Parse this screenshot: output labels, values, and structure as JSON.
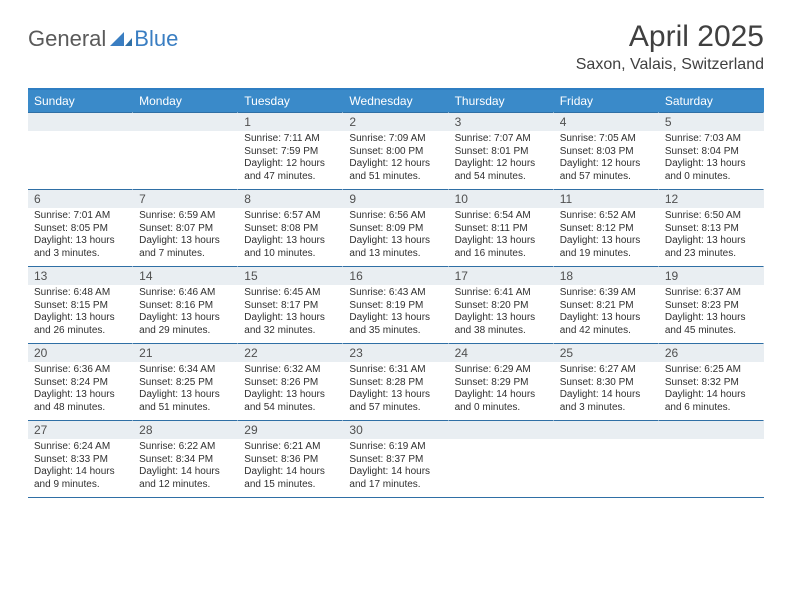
{
  "brand": {
    "general": "General",
    "blue": "Blue"
  },
  "title": "April 2025",
  "location": "Saxon, Valais, Switzerland",
  "colors": {
    "header_bar": "#3a8ac9",
    "header_top_border": "#2f7ec2",
    "daynum_bg": "#e9eef2",
    "row_border": "#2f6fa5",
    "text": "#303030",
    "logo_gray": "#5a5a5a",
    "logo_blue": "#3a7ec2"
  },
  "weekdays": [
    "Sunday",
    "Monday",
    "Tuesday",
    "Wednesday",
    "Thursday",
    "Friday",
    "Saturday"
  ],
  "leading_blanks": 2,
  "days": [
    {
      "n": 1,
      "sunrise": "7:11 AM",
      "sunset": "7:59 PM",
      "daylight": "12 hours and 47 minutes."
    },
    {
      "n": 2,
      "sunrise": "7:09 AM",
      "sunset": "8:00 PM",
      "daylight": "12 hours and 51 minutes."
    },
    {
      "n": 3,
      "sunrise": "7:07 AM",
      "sunset": "8:01 PM",
      "daylight": "12 hours and 54 minutes."
    },
    {
      "n": 4,
      "sunrise": "7:05 AM",
      "sunset": "8:03 PM",
      "daylight": "12 hours and 57 minutes."
    },
    {
      "n": 5,
      "sunrise": "7:03 AM",
      "sunset": "8:04 PM",
      "daylight": "13 hours and 0 minutes."
    },
    {
      "n": 6,
      "sunrise": "7:01 AM",
      "sunset": "8:05 PM",
      "daylight": "13 hours and 3 minutes."
    },
    {
      "n": 7,
      "sunrise": "6:59 AM",
      "sunset": "8:07 PM",
      "daylight": "13 hours and 7 minutes."
    },
    {
      "n": 8,
      "sunrise": "6:57 AM",
      "sunset": "8:08 PM",
      "daylight": "13 hours and 10 minutes."
    },
    {
      "n": 9,
      "sunrise": "6:56 AM",
      "sunset": "8:09 PM",
      "daylight": "13 hours and 13 minutes."
    },
    {
      "n": 10,
      "sunrise": "6:54 AM",
      "sunset": "8:11 PM",
      "daylight": "13 hours and 16 minutes."
    },
    {
      "n": 11,
      "sunrise": "6:52 AM",
      "sunset": "8:12 PM",
      "daylight": "13 hours and 19 minutes."
    },
    {
      "n": 12,
      "sunrise": "6:50 AM",
      "sunset": "8:13 PM",
      "daylight": "13 hours and 23 minutes."
    },
    {
      "n": 13,
      "sunrise": "6:48 AM",
      "sunset": "8:15 PM",
      "daylight": "13 hours and 26 minutes."
    },
    {
      "n": 14,
      "sunrise": "6:46 AM",
      "sunset": "8:16 PM",
      "daylight": "13 hours and 29 minutes."
    },
    {
      "n": 15,
      "sunrise": "6:45 AM",
      "sunset": "8:17 PM",
      "daylight": "13 hours and 32 minutes."
    },
    {
      "n": 16,
      "sunrise": "6:43 AM",
      "sunset": "8:19 PM",
      "daylight": "13 hours and 35 minutes."
    },
    {
      "n": 17,
      "sunrise": "6:41 AM",
      "sunset": "8:20 PM",
      "daylight": "13 hours and 38 minutes."
    },
    {
      "n": 18,
      "sunrise": "6:39 AM",
      "sunset": "8:21 PM",
      "daylight": "13 hours and 42 minutes."
    },
    {
      "n": 19,
      "sunrise": "6:37 AM",
      "sunset": "8:23 PM",
      "daylight": "13 hours and 45 minutes."
    },
    {
      "n": 20,
      "sunrise": "6:36 AM",
      "sunset": "8:24 PM",
      "daylight": "13 hours and 48 minutes."
    },
    {
      "n": 21,
      "sunrise": "6:34 AM",
      "sunset": "8:25 PM",
      "daylight": "13 hours and 51 minutes."
    },
    {
      "n": 22,
      "sunrise": "6:32 AM",
      "sunset": "8:26 PM",
      "daylight": "13 hours and 54 minutes."
    },
    {
      "n": 23,
      "sunrise": "6:31 AM",
      "sunset": "8:28 PM",
      "daylight": "13 hours and 57 minutes."
    },
    {
      "n": 24,
      "sunrise": "6:29 AM",
      "sunset": "8:29 PM",
      "daylight": "14 hours and 0 minutes."
    },
    {
      "n": 25,
      "sunrise": "6:27 AM",
      "sunset": "8:30 PM",
      "daylight": "14 hours and 3 minutes."
    },
    {
      "n": 26,
      "sunrise": "6:25 AM",
      "sunset": "8:32 PM",
      "daylight": "14 hours and 6 minutes."
    },
    {
      "n": 27,
      "sunrise": "6:24 AM",
      "sunset": "8:33 PM",
      "daylight": "14 hours and 9 minutes."
    },
    {
      "n": 28,
      "sunrise": "6:22 AM",
      "sunset": "8:34 PM",
      "daylight": "14 hours and 12 minutes."
    },
    {
      "n": 29,
      "sunrise": "6:21 AM",
      "sunset": "8:36 PM",
      "daylight": "14 hours and 15 minutes."
    },
    {
      "n": 30,
      "sunrise": "6:19 AM",
      "sunset": "8:37 PM",
      "daylight": "14 hours and 17 minutes."
    }
  ],
  "labels": {
    "sunrise": "Sunrise:",
    "sunset": "Sunset:",
    "daylight": "Daylight:"
  }
}
